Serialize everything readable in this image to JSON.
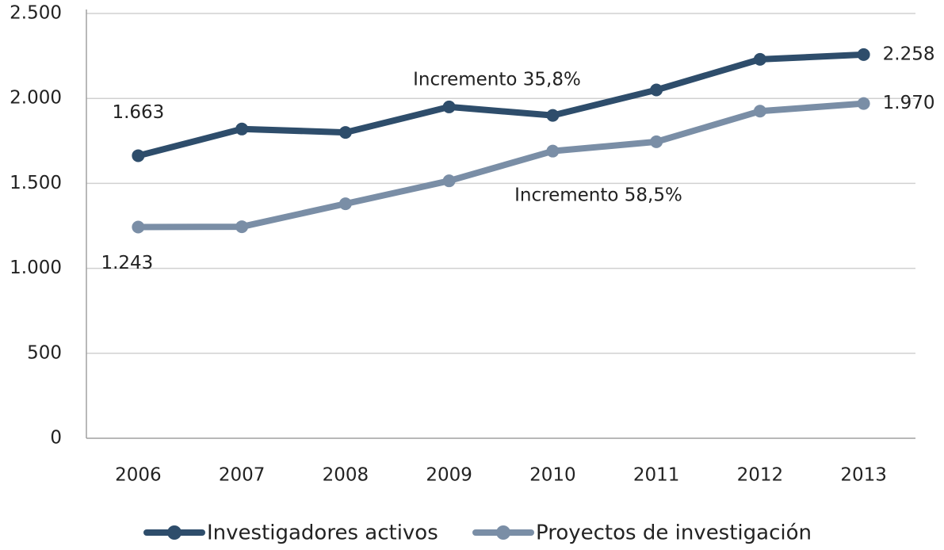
{
  "chart_data": {
    "type": "line",
    "categories": [
      "2006",
      "2007",
      "2008",
      "2009",
      "2010",
      "2011",
      "2012",
      "2013"
    ],
    "series": [
      {
        "name": "Investigadores activos",
        "color": "#2e4d6b",
        "values": [
          1663,
          1820,
          1800,
          1950,
          1900,
          2050,
          2230,
          2258
        ],
        "value_labels": [
          "1.663",
          null,
          null,
          null,
          null,
          null,
          null,
          "2.258"
        ]
      },
      {
        "name": "Proyectos de investigación",
        "color": "#7a8ea6",
        "values": [
          1243,
          1245,
          1380,
          1515,
          1690,
          1745,
          1925,
          1970
        ],
        "value_labels": [
          "1.243",
          null,
          null,
          null,
          null,
          null,
          null,
          "1.970"
        ]
      }
    ],
    "annotations": [
      "Incremento 35,8%",
      "Incremento 58,5%"
    ],
    "ylim": [
      0,
      2500
    ],
    "yticks": [
      0,
      500,
      {
        "value": 1000,
        "label": "1.000"
      },
      {
        "value": 1500,
        "label": "1.500"
      },
      {
        "value": 2000,
        "label": "2.000"
      },
      {
        "value": 2500,
        "label": "2.500"
      }
    ],
    "grid": true
  }
}
